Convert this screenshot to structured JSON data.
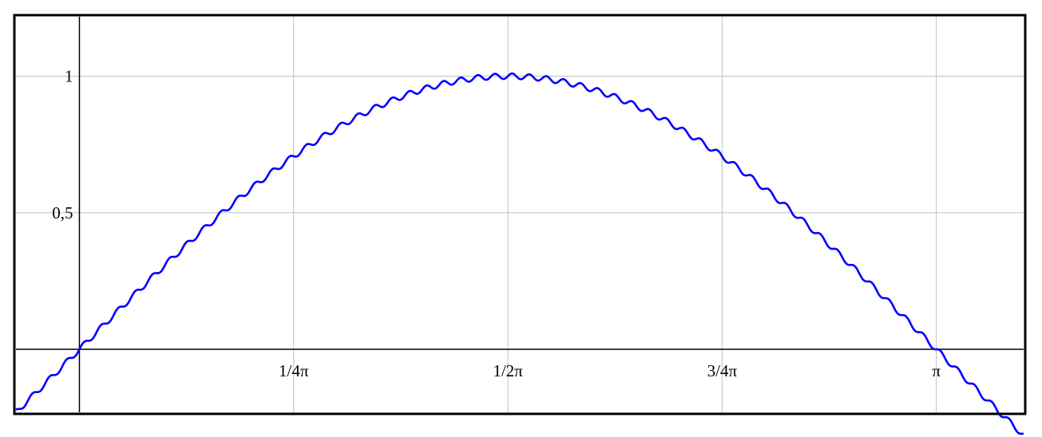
{
  "chart_data": {
    "type": "line",
    "title": "",
    "xlabel": "",
    "ylabel": "",
    "xlim": [
      -0.2326,
      3.4618
    ],
    "ylim": [
      -0.2305,
      1.2177
    ],
    "grid": true,
    "legend": "none",
    "axis_lines": {
      "x_at_y": 0,
      "y_at_x": 0
    },
    "x_ticks": [
      {
        "value": 0.7854,
        "label": "1/4π"
      },
      {
        "value": 1.5708,
        "label": "1/2π"
      },
      {
        "value": 2.3562,
        "label": "3/4π"
      },
      {
        "value": 3.1416,
        "label": "π"
      }
    ],
    "y_ticks": [
      {
        "value": 0.5,
        "label": "0,5"
      },
      {
        "value": 1,
        "label": "1"
      }
    ],
    "series": [
      {
        "color": "#0000ff",
        "formula_description": "sin(x) plus a small ripple: sin(x) + 0.01*sin(100x)",
        "base": "sin",
        "ripple_amplitude": 0.01,
        "ripple_frequency": 100,
        "x_range": [
          -0.2326,
          3.4618
        ]
      }
    ]
  }
}
